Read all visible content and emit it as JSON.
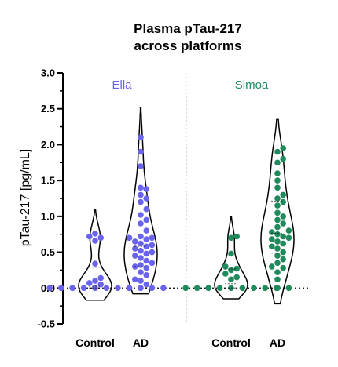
{
  "chart_data": {
    "type": "violin",
    "title_lines": [
      "Plasma pTau-217",
      "across platforms"
    ],
    "ylabel": "pTau-217 [pg/mL]",
    "ylim": [
      -0.5,
      3.0
    ],
    "yticks": [
      "-0.5",
      "0.0",
      "0.5",
      "1.0",
      "1.5",
      "2.0",
      "2.5",
      "3.0"
    ],
    "reference_line": 0,
    "panels": [
      {
        "label": "Ella",
        "color": "#6a63ee",
        "groups": [
          {
            "name": "Control",
            "violin_range": [
              -0.17,
              1.1
            ],
            "values": [
              0,
              0,
              0,
              0,
              0,
              0,
              0,
              0,
              0,
              0.05,
              0.07,
              0.1,
              0.14,
              0.34,
              0.66,
              0.7,
              0.72,
              0.76
            ]
          },
          {
            "name": "AD",
            "violin_range": [
              -0.08,
              2.52
            ],
            "values": [
              0,
              0,
              0,
              0,
              0.05,
              0.1,
              0.12,
              0.18,
              0.22,
              0.28,
              0.3,
              0.32,
              0.35,
              0.38,
              0.42,
              0.45,
              0.48,
              0.5,
              0.52,
              0.55,
              0.58,
              0.6,
              0.62,
              0.65,
              0.68,
              0.7,
              0.7,
              0.72,
              0.8,
              0.9,
              0.95,
              1.02,
              1.1,
              1.2,
              1.25,
              1.3,
              1.38,
              1.4,
              1.7,
              1.9,
              2.1
            ]
          }
        ]
      },
      {
        "label": "Simoa",
        "color": "#1f8a5c",
        "groups": [
          {
            "name": "Control",
            "violin_range": [
              -0.15,
              1.0
            ],
            "values": [
              0,
              0,
              0,
              0,
              0,
              0,
              0,
              0,
              0,
              0.12,
              0.15,
              0.2,
              0.25,
              0.27,
              0.3,
              0.48,
              0.7,
              0.72
            ]
          },
          {
            "name": "AD",
            "violin_range": [
              -0.22,
              2.35
            ],
            "values": [
              0,
              0,
              0.12,
              0.22,
              0.28,
              0.3,
              0.35,
              0.4,
              0.45,
              0.5,
              0.55,
              0.58,
              0.62,
              0.65,
              0.68,
              0.7,
              0.72,
              0.75,
              0.78,
              0.8,
              0.85,
              0.9,
              0.95,
              1.0,
              1.05,
              1.15,
              1.2,
              1.25,
              1.3,
              1.4,
              1.5,
              1.6,
              1.75,
              1.8,
              1.9,
              1.95
            ]
          }
        ]
      }
    ]
  }
}
